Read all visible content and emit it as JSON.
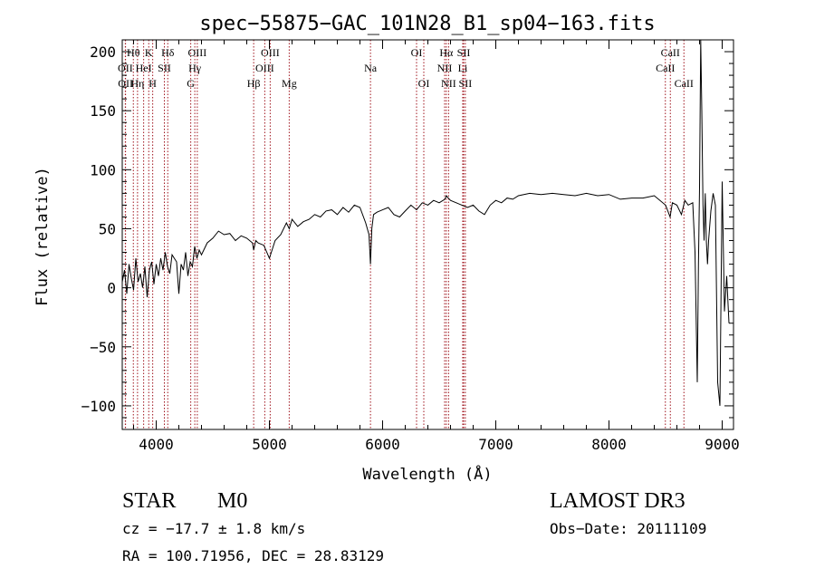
{
  "chart_data": {
    "type": "line",
    "title": "spec−55875−GAC_101N28_B1_sp04−163.fits",
    "xlabel": "Wavelength (Å)",
    "ylabel": "Flux (relative)",
    "xlim": [
      3700,
      9100
    ],
    "ylim": [
      -120,
      210
    ],
    "xticks": [
      4000,
      5000,
      6000,
      7000,
      8000,
      9000
    ],
    "xtick_labels": [
      "4000",
      "5000",
      "6000",
      "7000",
      "8000",
      "9000"
    ],
    "yticks": [
      -100,
      -50,
      0,
      50,
      100,
      150,
      200
    ],
    "ytick_labels": [
      "−100",
      "−50",
      "0",
      "50",
      "100",
      "150",
      "200"
    ],
    "series": [
      {
        "name": "flux",
        "x": [
          3700,
          3720,
          3740,
          3760,
          3780,
          3800,
          3820,
          3840,
          3860,
          3880,
          3900,
          3920,
          3940,
          3960,
          3980,
          4000,
          4020,
          4040,
          4060,
          4080,
          4100,
          4120,
          4140,
          4160,
          4180,
          4200,
          4220,
          4240,
          4260,
          4280,
          4300,
          4320,
          4340,
          4360,
          4380,
          4400,
          4450,
          4500,
          4550,
          4600,
          4650,
          4700,
          4750,
          4800,
          4850,
          4861,
          4880,
          4900,
          4950,
          5000,
          5050,
          5100,
          5150,
          5175,
          5200,
          5250,
          5300,
          5350,
          5400,
          5450,
          5500,
          5550,
          5600,
          5650,
          5700,
          5750,
          5800,
          5850,
          5880,
          5893,
          5905,
          5920,
          5950,
          6000,
          6050,
          6100,
          6150,
          6200,
          6250,
          6300,
          6350,
          6400,
          6450,
          6500,
          6550,
          6563,
          6580,
          6600,
          6650,
          6700,
          6750,
          6800,
          6850,
          6900,
          6950,
          7000,
          7050,
          7100,
          7150,
          7200,
          7300,
          7400,
          7500,
          7600,
          7700,
          7800,
          7900,
          8000,
          8100,
          8200,
          8300,
          8400,
          8500,
          8540,
          8560,
          8600,
          8640,
          8670,
          8700,
          8740,
          8760,
          8780,
          8790,
          8800,
          8810,
          8820,
          8830,
          8840,
          8850,
          8860,
          8870,
          8880,
          8900,
          8920,
          8940,
          8960,
          8980,
          9000,
          9020,
          9040,
          9060
        ],
        "values": [
          5,
          15,
          -5,
          20,
          8,
          -2,
          25,
          5,
          12,
          0,
          18,
          -8,
          15,
          22,
          3,
          20,
          10,
          25,
          15,
          30,
          18,
          12,
          28,
          25,
          22,
          -5,
          20,
          15,
          30,
          10,
          22,
          18,
          35,
          25,
          32,
          28,
          38,
          42,
          48,
          45,
          46,
          40,
          44,
          42,
          38,
          32,
          40,
          38,
          36,
          25,
          40,
          45,
          55,
          50,
          58,
          52,
          56,
          58,
          62,
          60,
          65,
          66,
          62,
          68,
          64,
          70,
          68,
          55,
          45,
          20,
          50,
          62,
          64,
          66,
          68,
          62,
          60,
          65,
          70,
          66,
          72,
          70,
          74,
          72,
          75,
          78,
          76,
          74,
          72,
          70,
          68,
          70,
          65,
          62,
          70,
          74,
          72,
          76,
          75,
          78,
          80,
          79,
          80,
          79,
          78,
          80,
          78,
          79,
          75,
          76,
          76,
          78,
          70,
          60,
          72,
          70,
          62,
          74,
          70,
          72,
          30,
          -80,
          20,
          85,
          210,
          150,
          70,
          40,
          80,
          40,
          20,
          40,
          65,
          80,
          70,
          -80,
          -100,
          90,
          -20,
          10,
          -30
        ]
      }
    ],
    "annotations": [
      {
        "label": "Hθ",
        "x": 3798,
        "row": 1
      },
      {
        "label": "OII",
        "x": 3727,
        "row": 2
      },
      {
        "label": "OII",
        "x": 3729,
        "row": 3
      },
      {
        "label": "Hη",
        "x": 3835,
        "row": 3
      },
      {
        "label": "K",
        "x": 3934,
        "row": 1
      },
      {
        "label": "HeI",
        "x": 3889,
        "row": 2
      },
      {
        "label": "H",
        "x": 3969,
        "row": 3
      },
      {
        "label": "Hδ",
        "x": 4102,
        "row": 1
      },
      {
        "label": "SII",
        "x": 4072,
        "row": 2
      },
      {
        "label": "OIII",
        "x": 4363,
        "row": 1
      },
      {
        "label": "Hγ",
        "x": 4341,
        "row": 2
      },
      {
        "label": "G",
        "x": 4305,
        "row": 3
      },
      {
        "label": "Hβ",
        "x": 4861,
        "row": 3
      },
      {
        "label": "OIII",
        "x": 5007,
        "row": 1
      },
      {
        "label": "OIII",
        "x": 4959,
        "row": 2
      },
      {
        "label": "Mg",
        "x": 5175,
        "row": 3
      },
      {
        "label": "Na",
        "x": 5893,
        "row": 2
      },
      {
        "label": "OI",
        "x": 6300,
        "row": 1
      },
      {
        "label": "OI",
        "x": 6364,
        "row": 3
      },
      {
        "label": "Hα",
        "x": 6563,
        "row": 1
      },
      {
        "label": "NII",
        "x": 6548,
        "row": 2
      },
      {
        "label": "NII",
        "x": 6583,
        "row": 3
      },
      {
        "label": "SII",
        "x": 6716,
        "row": 1
      },
      {
        "label": "Li",
        "x": 6708,
        "row": 2
      },
      {
        "label": "SII",
        "x": 6731,
        "row": 3
      },
      {
        "label": "CaII",
        "x": 8542,
        "row": 1
      },
      {
        "label": "CaII",
        "x": 8498,
        "row": 2
      },
      {
        "label": "CaII",
        "x": 8662,
        "row": 3
      }
    ],
    "line_markers": [
      3727,
      3729,
      3798,
      3835,
      3889,
      3934,
      3969,
      4072,
      4102,
      4305,
      4341,
      4363,
      4861,
      4959,
      5007,
      5175,
      5893,
      6300,
      6364,
      6548,
      6563,
      6583,
      6708,
      6716,
      6731,
      8498,
      8542,
      8662
    ],
    "colors": {
      "axis": "#000000",
      "line": "#000000",
      "marker": "#a0141e"
    }
  },
  "info": {
    "object_class": "STAR",
    "subclass": "M0",
    "survey": "LAMOST DR3",
    "redshift": "cz = −17.7 ± 1.8 km/s",
    "obs_date": "Obs−Date: 20111109",
    "coords": "RA = 100.71956, DEC =  28.83129"
  }
}
